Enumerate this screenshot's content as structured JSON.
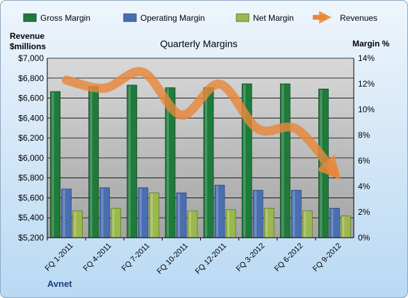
{
  "chart_data": {
    "type": "bar",
    "title": "Quarterly Margins",
    "left_axis_label_line1": "Revenue",
    "left_axis_label_line2": "$millions",
    "right_axis_label": "Margin %",
    "footer": "Avnet",
    "categories": [
      "FQ 1-2011",
      "FQ 4-2011",
      "FQ 7-2011",
      "FQ 10-2011",
      "FQ 12-2011",
      "FQ 3-2012",
      "FQ 6-2012",
      "FQ 9-2012"
    ],
    "left_axis": {
      "min": 5200,
      "max": 7000,
      "step": 200,
      "tick_labels": [
        "$5,200",
        "$5,400",
        "$5,600",
        "$5,800",
        "$6,000",
        "$6,200",
        "$6,400",
        "$6,600",
        "$6,800",
        "$7,000"
      ]
    },
    "right_axis": {
      "min": 0,
      "max": 14,
      "step": 2,
      "tick_labels": [
        "0%",
        "2%",
        "4%",
        "6%",
        "8%",
        "10%",
        "12%",
        "14%"
      ]
    },
    "series": [
      {
        "name": "Gross Margin",
        "kind": "bar",
        "axis": "right",
        "color": "#1e7b3c",
        "values": [
          11.4,
          11.8,
          11.9,
          11.7,
          11.7,
          12.0,
          12.0,
          11.6
        ]
      },
      {
        "name": "Operating Margin",
        "kind": "bar",
        "axis": "right",
        "color": "#4a6fb0",
        "values": [
          3.8,
          3.9,
          3.9,
          3.5,
          4.1,
          3.7,
          3.7,
          2.3
        ]
      },
      {
        "name": "Net Margin",
        "kind": "bar",
        "axis": "right",
        "color": "#9ab84e",
        "values": [
          2.1,
          2.3,
          3.5,
          2.1,
          2.2,
          2.3,
          2.1,
          1.7
        ]
      },
      {
        "name": "Revenues",
        "kind": "line",
        "axis": "left",
        "color": "#e8873a",
        "values": [
          6780,
          6700,
          6860,
          6430,
          6740,
          6290,
          6290,
          5850
        ]
      }
    ],
    "legend_position": "top",
    "grid": true
  }
}
